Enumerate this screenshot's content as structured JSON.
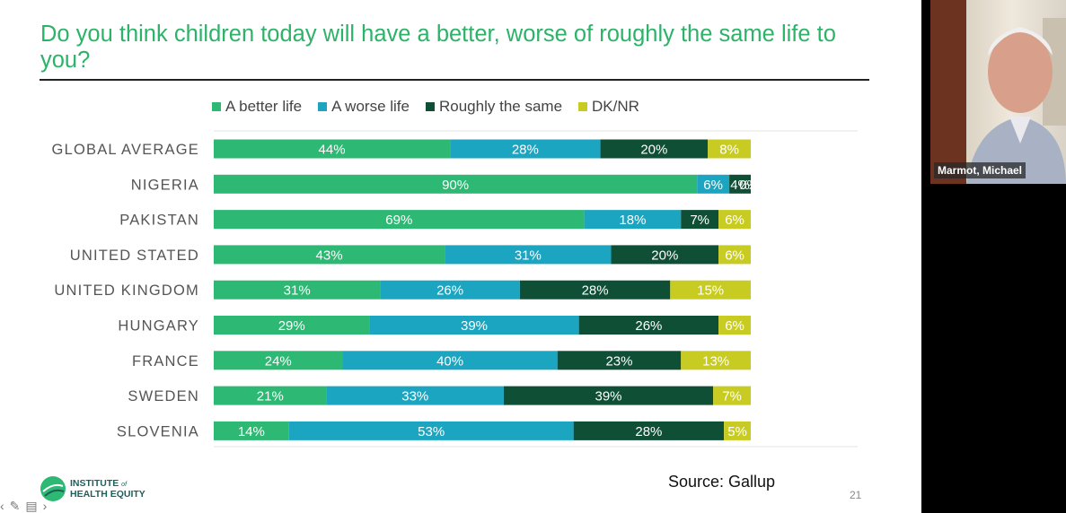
{
  "slide": {
    "title": "Do you think children today will have a better, worse of roughly the same life to you?",
    "source": "Source: Gallup",
    "page_number": "21",
    "logo": {
      "line1": "INSTITUTE",
      "of": "of",
      "line2": "HEALTH EQUITY"
    }
  },
  "video": {
    "participant_name": "Marmot, Michael"
  },
  "colors": {
    "better": "#2db873",
    "worse": "#1ca5c0",
    "same": "#0e4f36",
    "dk": "#c8cc22"
  },
  "chart_data": {
    "type": "bar",
    "orientation": "horizontal",
    "stacked": true,
    "normalized": true,
    "title": "Do you think children today will have a better, worse of roughly the same life to you?",
    "categories": [
      "GLOBAL AVERAGE",
      "NIGERIA",
      "PAKISTAN",
      "UNITED STATED",
      "UNITED KINGDOM",
      "HUNGARY",
      "FRANCE",
      "SWEDEN",
      "SLOVENIA"
    ],
    "series": [
      {
        "name": "A better life",
        "color": "#2db873",
        "values": [
          44,
          90,
          69,
          43,
          31,
          29,
          24,
          21,
          14
        ]
      },
      {
        "name": "A worse life",
        "color": "#1ca5c0",
        "values": [
          28,
          6,
          18,
          31,
          26,
          39,
          40,
          33,
          53
        ]
      },
      {
        "name": "Roughly the same",
        "color": "#0e4f36",
        "values": [
          20,
          4,
          7,
          20,
          28,
          26,
          23,
          39,
          28
        ]
      },
      {
        "name": "DK/NR",
        "color": "#c8cc22",
        "values": [
          8,
          0,
          6,
          6,
          15,
          6,
          13,
          7,
          5
        ]
      }
    ],
    "labels": [
      [
        "44%",
        "28%",
        "20%",
        "8%"
      ],
      [
        "90%",
        "6%",
        "4%",
        "0%"
      ],
      [
        "69%",
        "18%",
        "7%",
        "6%"
      ],
      [
        "43%",
        "31%",
        "20%",
        "6%"
      ],
      [
        "31%",
        "26%",
        "28%",
        "15%"
      ],
      [
        "29%",
        "39%",
        "26%",
        "6%"
      ],
      [
        "24%",
        "40%",
        "23%",
        "13%"
      ],
      [
        "21%",
        "33%",
        "39%",
        "7%"
      ],
      [
        "14%",
        "53%",
        "28%",
        "5%"
      ]
    ],
    "legend_position": "top",
    "xlim": [
      0,
      100
    ]
  }
}
